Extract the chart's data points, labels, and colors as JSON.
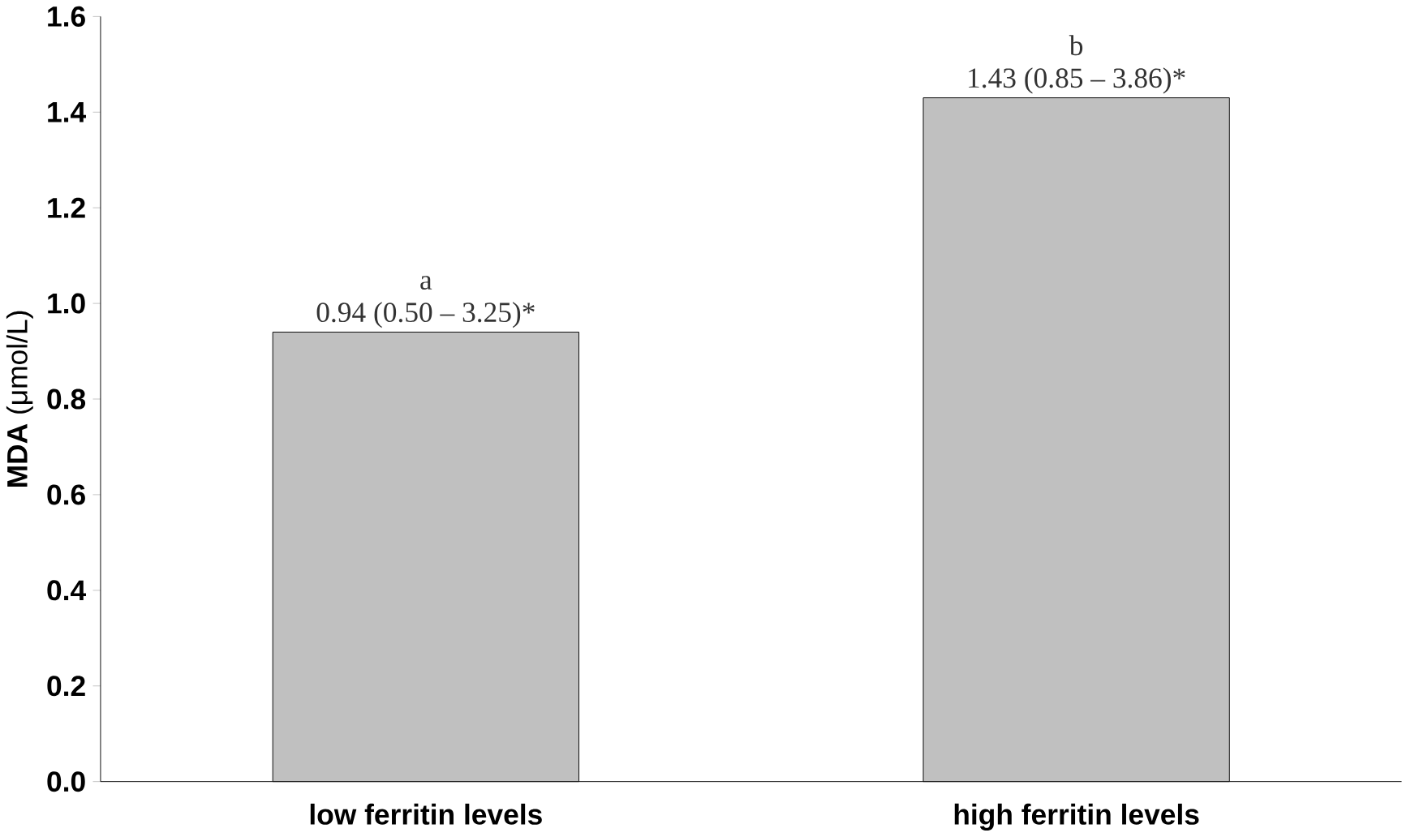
{
  "chart_data": {
    "type": "bar",
    "ylabel": "**MDA** (μmol/L)",
    "categories": [
      "low ferritin levels",
      "high ferritin levels"
    ],
    "values": [
      0.94,
      1.43
    ],
    "color": "#c0c0c0",
    "value_labels": [
      "0.94 (0.50 – 3.25)*",
      "1.43 (0.85 – 3.86)*"
    ],
    "annotations": [
      "a",
      "b"
    ],
    "ylim": [
      0,
      1.6
    ],
    "yticks": [
      {
        "value": 0,
        "label": "0.0"
      },
      0.2,
      0.4,
      0.6,
      0.8,
      {
        "value": 1,
        "label": "1.0"
      },
      1.2,
      1.4,
      1.6
    ],
    "grid": false
  }
}
